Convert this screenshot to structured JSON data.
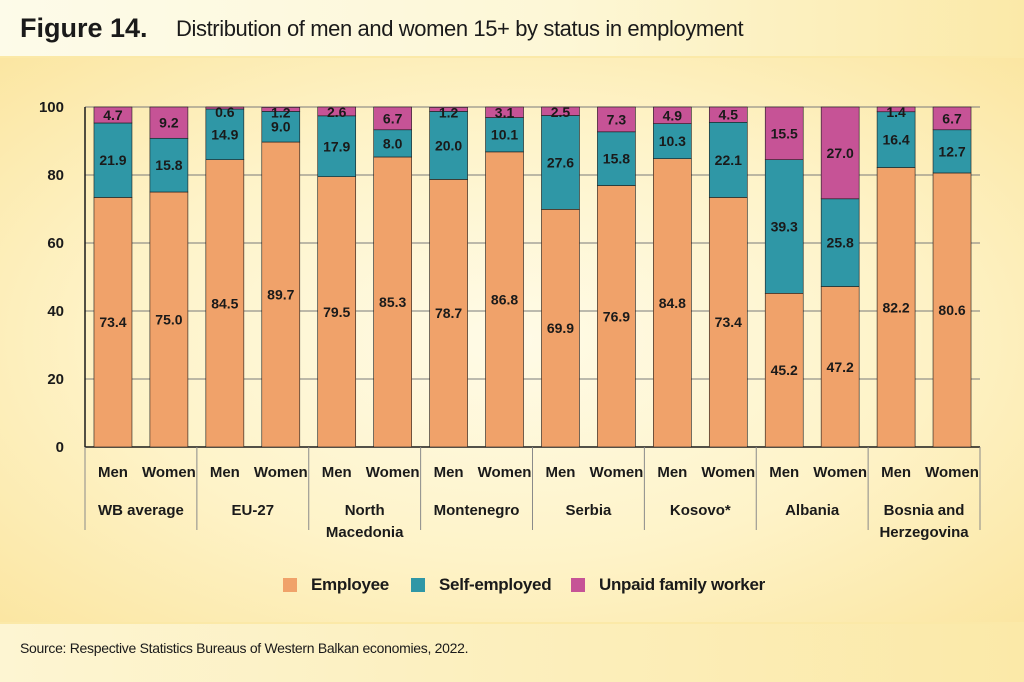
{
  "figure": {
    "label": "Figure 14.",
    "title": "Distribution of men and women 15+ by status in employment",
    "source": "Source: Respective Statistics Bureaus of Western Balkan economies, 2022."
  },
  "colors": {
    "Employee": "#f0a26a",
    "Self-employed": "#2f97a6",
    "Unpaid family worker": "#c65396"
  },
  "chart_data": {
    "type": "bar",
    "stacked": true,
    "title": "Distribution of men and women 15+ by status in employment",
    "ylim": [
      0,
      100
    ],
    "yticks": [
      0,
      20,
      40,
      60,
      80,
      100
    ],
    "grid": true,
    "legend_position": "bottom",
    "groups": [
      {
        "name": "WB average",
        "label_lines": [
          "WB average"
        ]
      },
      {
        "name": "EU-27",
        "label_lines": [
          "EU-27"
        ]
      },
      {
        "name": "North Macedonia",
        "label_lines": [
          "North",
          "Macedonia"
        ]
      },
      {
        "name": "Montenegro",
        "label_lines": [
          "Montenegro"
        ]
      },
      {
        "name": "Serbia",
        "label_lines": [
          "Serbia"
        ]
      },
      {
        "name": "Kosovo*",
        "label_lines": [
          "Kosovo*"
        ]
      },
      {
        "name": "Albania",
        "label_lines": [
          "Albania"
        ]
      },
      {
        "name": "Bosnia and Herzegovina",
        "label_lines": [
          "Bosnia and",
          "Herzegovina"
        ]
      }
    ],
    "categories": [
      "Men",
      "Women",
      "Men",
      "Women",
      "Men",
      "Women",
      "Men",
      "Women",
      "Men",
      "Women",
      "Men",
      "Women",
      "Men",
      "Women",
      "Men",
      "Women"
    ],
    "series": [
      {
        "name": "Employee",
        "values": [
          73.4,
          75.0,
          84.5,
          89.7,
          79.5,
          85.3,
          78.7,
          86.8,
          69.9,
          76.9,
          84.8,
          73.4,
          45.2,
          47.2,
          82.2,
          80.6
        ]
      },
      {
        "name": "Self-employed",
        "values": [
          21.9,
          15.8,
          14.9,
          9.0,
          17.9,
          8.0,
          20.0,
          10.1,
          27.6,
          15.8,
          10.3,
          22.1,
          39.3,
          25.8,
          16.4,
          12.7
        ]
      },
      {
        "name": "Unpaid family worker",
        "values": [
          4.7,
          9.2,
          0.6,
          1.2,
          2.6,
          6.7,
          1.2,
          3.1,
          2.5,
          7.3,
          4.9,
          4.5,
          15.5,
          27.0,
          1.4,
          6.7
        ]
      }
    ]
  }
}
